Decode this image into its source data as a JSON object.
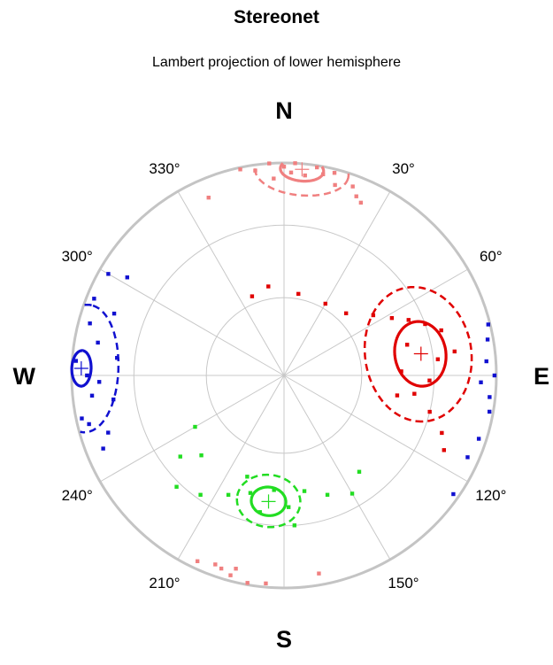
{
  "chart_data": {
    "type": "scatter",
    "title": "Stereonet",
    "subtitle": "Lambert projection of lower hemisphere",
    "projection": "Lambert equal-area, lower hemisphere",
    "grid": true,
    "grid_rings_plunge_deg": [
      30,
      60
    ],
    "spoke_azimuths_deg": [
      0,
      30,
      60,
      90,
      120,
      150,
      180,
      210,
      240,
      270,
      300,
      330
    ],
    "compass_labels": {
      "north": "N",
      "east": "E",
      "south": "S",
      "west": "W"
    },
    "azimuth_labels": [
      {
        "azimuth": 30,
        "text": "30°"
      },
      {
        "azimuth": 60,
        "text": "60°"
      },
      {
        "azimuth": 120,
        "text": "120°"
      },
      {
        "azimuth": 150,
        "text": "150°"
      },
      {
        "azimuth": 210,
        "text": "210°"
      },
      {
        "azimuth": 240,
        "text": "240°"
      },
      {
        "azimuth": 300,
        "text": "300°"
      },
      {
        "azimuth": 330,
        "text": "330°"
      }
    ],
    "series": [
      {
        "color": "#f08080",
        "mean": {
          "azimuth": 5,
          "plunge": 3
        },
        "inner_cone_deg": 6,
        "outer_cone_deg": 13,
        "points": [
          {
            "azimuth": -12,
            "plunge": 1
          },
          {
            "azimuth": -8,
            "plunge": 3
          },
          {
            "azimuth": -4,
            "plunge": 0
          },
          {
            "azimuth": 0,
            "plunge": 2
          },
          {
            "azimuth": 3,
            "plunge": 0
          },
          {
            "azimuth": 6,
            "plunge": 6
          },
          {
            "azimuth": 9,
            "plunge": 1
          },
          {
            "azimuth": 11,
            "plunge": 4
          },
          {
            "azimuth": 14,
            "plunge": 2
          },
          {
            "azimuth": 15,
            "plunge": 8
          },
          {
            "azimuth": 20,
            "plunge": 6
          },
          {
            "azimuth": 22,
            "plunge": 10
          },
          {
            "azimuth": 24,
            "plunge": 12
          },
          {
            "azimuth": -23,
            "plunge": 10
          },
          {
            "azimuth": -3,
            "plunge": 8
          },
          {
            "azimuth": 2,
            "plunge": 5
          },
          {
            "azimuth": 190,
            "plunge": 1
          },
          {
            "azimuth": 195,
            "plunge": 3
          },
          {
            "azimuth": 198,
            "plunge": 5
          },
          {
            "azimuth": 205,
            "plunge": 4
          },
          {
            "azimuth": 185,
            "plunge": 2
          },
          {
            "azimuth": 170,
            "plunge": 6
          },
          {
            "azimuth": 200,
            "plunge": 6
          },
          {
            "azimuth": 194,
            "plunge": 7
          }
        ]
      },
      {
        "color": "#e00000",
        "mean": {
          "azimuth": 81,
          "plunge": 35
        },
        "inner_cone_deg": 11,
        "outer_cone_deg": 23,
        "points": [
          {
            "azimuth": 70,
            "plunge": 30
          },
          {
            "azimuth": 76,
            "plunge": 40
          },
          {
            "azimuth": 84,
            "plunge": 28
          },
          {
            "azimuth": 92,
            "plunge": 32
          },
          {
            "azimuth": 98,
            "plunge": 38
          },
          {
            "azimuth": 104,
            "plunge": 30
          },
          {
            "azimuth": 110,
            "plunge": 22
          },
          {
            "azimuth": 115,
            "plunge": 18
          },
          {
            "azimuth": 62,
            "plunge": 42
          },
          {
            "azimuth": 56,
            "plunge": 48
          },
          {
            "azimuth": 66,
            "plunge": 36
          },
          {
            "azimuth": 88,
            "plunge": 44
          },
          {
            "azimuth": 100,
            "plunge": 45
          },
          {
            "azimuth": 45,
            "plunge": 56
          },
          {
            "azimuth": 30,
            "plunge": 58
          },
          {
            "azimuth": 10,
            "plunge": 58
          },
          {
            "azimuth": 350,
            "plunge": 55
          },
          {
            "azimuth": 338,
            "plunge": 57
          },
          {
            "azimuth": 74,
            "plunge": 24
          },
          {
            "azimuth": 82,
            "plunge": 20
          }
        ]
      },
      {
        "color": "#1010d0",
        "mean": {
          "azimuth": 272,
          "plunge": 5
        },
        "inner_cone_deg": 5,
        "outer_cone_deg": 18,
        "points": [
          {
            "azimuth": 270,
            "plunge": 8
          },
          {
            "azimuth": 264,
            "plunge": 10
          },
          {
            "azimuth": 268,
            "plunge": 14
          },
          {
            "azimuth": 280,
            "plunge": 12
          },
          {
            "azimuth": 285,
            "plunge": 6
          },
          {
            "azimuth": 290,
            "plunge": 16
          },
          {
            "azimuth": 256,
            "plunge": 6
          },
          {
            "azimuth": 252,
            "plunge": 14
          },
          {
            "azimuth": 248,
            "plunge": 9
          },
          {
            "azimuth": 276,
            "plunge": 22
          },
          {
            "azimuth": 262,
            "plunge": 20
          },
          {
            "azimuth": 300,
            "plunge": 5
          },
          {
            "azimuth": 302,
            "plunge": 14
          },
          {
            "azimuth": 274,
            "plunge": 2
          },
          {
            "azimuth": 258,
            "plunge": 3
          },
          {
            "azimuth": 292,
            "plunge": 4
          },
          {
            "azimuth": 90,
            "plunge": 1
          },
          {
            "azimuth": 96,
            "plunge": 3
          },
          {
            "azimuth": 86,
            "plunge": 5
          },
          {
            "azimuth": 100,
            "plunge": 2
          },
          {
            "azimuth": 108,
            "plunge": 4
          },
          {
            "azimuth": 80,
            "plunge": 3
          },
          {
            "azimuth": 114,
            "plunge": 6
          },
          {
            "azimuth": 125,
            "plunge": 3
          },
          {
            "azimuth": 92,
            "plunge": 8
          },
          {
            "azimuth": 76,
            "plunge": 1
          }
        ]
      },
      {
        "color": "#22dd22",
        "mean": {
          "azimuth": 187,
          "plunge": 40
        },
        "inner_cone_deg": 6,
        "outer_cone_deg": 11,
        "points": [
          {
            "azimuth": 185,
            "plunge": 45
          },
          {
            "azimuth": 190,
            "plunge": 35
          },
          {
            "azimuth": 178,
            "plunge": 38
          },
          {
            "azimuth": 196,
            "plunge": 42
          },
          {
            "azimuth": 170,
            "plunge": 44
          },
          {
            "azimuth": 205,
            "plunge": 38
          },
          {
            "azimuth": 215,
            "plunge": 32
          },
          {
            "azimuth": 224,
            "plunge": 28
          },
          {
            "azimuth": 232,
            "plunge": 38
          },
          {
            "azimuth": 160,
            "plunge": 40
          },
          {
            "azimuth": 150,
            "plunge": 36
          },
          {
            "azimuth": 142,
            "plunge": 42
          },
          {
            "azimuth": 176,
            "plunge": 30
          },
          {
            "azimuth": 200,
            "plunge": 48
          },
          {
            "azimuth": 240,
            "plunge": 50
          },
          {
            "azimuth": 226,
            "plunge": 45
          }
        ]
      }
    ]
  }
}
